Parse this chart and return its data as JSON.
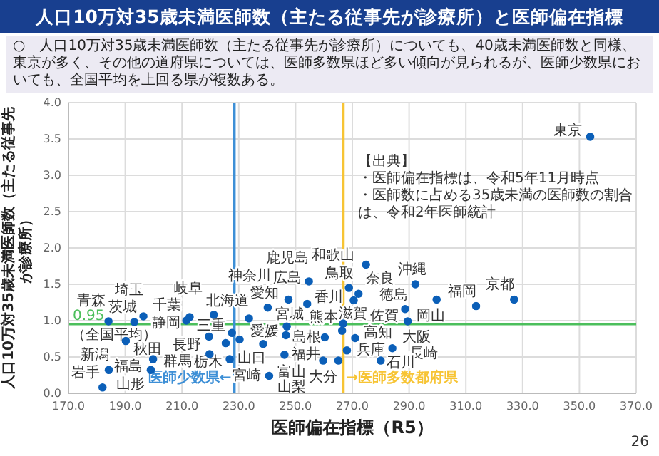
{
  "chart_data": {
    "type": "scatter",
    "title": "人口10万対35歳未満医師数（主たる従事先が診療所）と医師偏在指標",
    "subtitle": "○　人口10万対35歳未満医師数（主たる従事先が診療所）についても、40歳未満医師数と同様、東京が多く、その他の道府県については、医師多数県ほど多い傾向が見られるが、医師少数県においても、全国平均を上回る県が複数ある。",
    "xlabel": "医師偏在指標（R5）",
    "ylabel": "人口10万対35歳未満医師数（主たる従事先が診療所）",
    "x": [
      184.1,
      193.2,
      196.4,
      211.5,
      212.7,
      221.2,
      233.6,
      240.2,
      247.5,
      254.7,
      254.1,
      190.2,
      219.5,
      227.6,
      230.3,
      225.4,
      219.7,
      226.8,
      199.8,
      199.0,
      184.2,
      182.0,
      238.6,
      246.9,
      246.6,
      246.1,
      240.7,
      260.3,
      266.4,
      259.7,
      265.1,
      266.8,
      268.1,
      268.8,
      274.8,
      272.2,
      270.5,
      292.2,
      299.7,
      313.6,
      327.0,
      288.6,
      289.5,
      271.0,
      284.1,
      280.0,
      353.8
    ],
    "values": [
      0.99,
      0.98,
      1.06,
      1.0,
      1.05,
      1.08,
      1.03,
      1.18,
      1.29,
      1.54,
      1.23,
      0.72,
      0.78,
      0.83,
      0.74,
      0.69,
      0.54,
      0.47,
      0.47,
      0.32,
      0.32,
      0.08,
      0.68,
      0.92,
      0.8,
      0.53,
      0.24,
      0.77,
      0.86,
      0.45,
      0.45,
      0.96,
      0.59,
      1.45,
      1.77,
      1.37,
      1.28,
      1.5,
      1.29,
      1.2,
      1.29,
      1.16,
      0.99,
      0.76,
      0.62,
      0.45,
      3.53
    ],
    "color": "#0b5fb8",
    "marker": "circle",
    "grid": true,
    "xlim": [
      170,
      370
    ],
    "xticks": [
      {
        "value": 170,
        "label": "170.0"
      },
      {
        "value": 190,
        "label": "190.0"
      },
      {
        "value": 210,
        "label": "210.0"
      },
      {
        "value": 230,
        "label": "230.0"
      },
      {
        "value": 250,
        "label": "250.0"
      },
      {
        "value": 270,
        "label": "270.0"
      },
      {
        "value": 290,
        "label": "290.0"
      },
      {
        "value": 310,
        "label": "310.0"
      },
      {
        "value": 330,
        "label": "330.0"
      },
      {
        "value": 350,
        "label": "350.0"
      },
      {
        "value": 370,
        "label": "370.0"
      }
    ],
    "ylim": [
      0,
      4
    ],
    "yticks": [
      {
        "value": 0,
        "label": "0.0"
      },
      {
        "value": 0.5,
        "label": "0.5"
      },
      {
        "value": 1,
        "label": "1.0"
      },
      {
        "value": 1.5,
        "label": "1.5"
      },
      {
        "value": 2,
        "label": "2.0"
      },
      {
        "value": 2.5,
        "label": "2.5"
      },
      {
        "value": 3,
        "label": "3.0"
      },
      {
        "value": 3.5,
        "label": "3.5"
      },
      {
        "value": 4,
        "label": "4.0"
      }
    ],
    "ref_lines": [
      {
        "axis": "y",
        "value": 0.95,
        "label": "0.95",
        "color": "#4cbf5c"
      },
      {
        "axis": "x",
        "value": 228.4,
        "label": "医師少数県←",
        "color": "#3d8fd6"
      },
      {
        "axis": "x",
        "value": 266.8,
        "label": "→医師多数都府県",
        "color": "#f7c434"
      }
    ],
    "annotations": [
      {
        "text": "青森",
        "x": 184.1,
        "y": 0.99
      },
      {
        "text": "茨城",
        "x": 193.2,
        "y": 0.98
      },
      {
        "text": "埼玉",
        "x": 196.4,
        "y": 1.06
      },
      {
        "text": "静岡",
        "x": 211.5,
        "y": 1.0
      },
      {
        "text": "千葉",
        "x": 212.7,
        "y": 1.05
      },
      {
        "text": "岐阜",
        "x": 221.2,
        "y": 1.08
      },
      {
        "text": "北海道",
        "x": 233.6,
        "y": 1.03
      },
      {
        "text": "愛知",
        "x": 240.2,
        "y": 1.18
      },
      {
        "text": "神奈川",
        "x": 247.5,
        "y": 1.29
      },
      {
        "text": "鹿児島",
        "x": 254.7,
        "y": 1.54
      },
      {
        "text": "広島",
        "x": 254.1,
        "y": 1.23
      },
      {
        "text": "福島",
        "x": 190.2,
        "y": 0.72
      },
      {
        "text": "群馬",
        "x": 219.5,
        "y": 0.78
      },
      {
        "text": "山口",
        "x": 227.6,
        "y": 0.83
      },
      {
        "text": "栃木",
        "x": 230.3,
        "y": 0.74
      },
      {
        "text": "三重",
        "x": 225.4,
        "y": 0.69
      },
      {
        "text": "長野",
        "x": 219.7,
        "y": 0.54
      },
      {
        "text": "宮崎",
        "x": 226.8,
        "y": 0.47
      },
      {
        "text": "山形",
        "x": 199.8,
        "y": 0.47
      },
      {
        "text": "秋田",
        "x": 199.0,
        "y": 0.32
      },
      {
        "text": "新潟",
        "x": 184.2,
        "y": 0.32
      },
      {
        "text": "岩手",
        "x": 182.0,
        "y": 0.08
      },
      {
        "text": "富山",
        "x": 238.6,
        "y": 0.68
      },
      {
        "text": "宮城",
        "x": 246.9,
        "y": 0.92
      },
      {
        "text": "福井",
        "x": 246.6,
        "y": 0.8
      },
      {
        "text": "愛媛",
        "x": 246.1,
        "y": 0.53
      },
      {
        "text": "山梨",
        "x": 240.7,
        "y": 0.24
      },
      {
        "text": "滋賀",
        "x": 260.3,
        "y": 0.77
      },
      {
        "text": "兵庫",
        "x": 266.4,
        "y": 0.86
      },
      {
        "text": "大分",
        "x": 259.7,
        "y": 0.45
      },
      {
        "text": "島根",
        "x": 265.1,
        "y": 0.45
      },
      {
        "text": "香川",
        "x": 266.8,
        "y": 0.96
      },
      {
        "text": "高知",
        "x": 268.1,
        "y": 0.59
      },
      {
        "text": "奈良",
        "x": 268.8,
        "y": 1.45
      },
      {
        "text": "和歌山",
        "x": 274.8,
        "y": 1.77
      },
      {
        "text": "佐賀",
        "x": 272.2,
        "y": 1.37
      },
      {
        "text": "鳥取",
        "x": 270.5,
        "y": 1.28
      },
      {
        "text": "沖縄",
        "x": 292.2,
        "y": 1.5
      },
      {
        "text": "岡山",
        "x": 299.7,
        "y": 1.29
      },
      {
        "text": "福岡",
        "x": 313.6,
        "y": 1.2
      },
      {
        "text": "京都",
        "x": 327.0,
        "y": 1.29
      },
      {
        "text": "大阪",
        "x": 288.6,
        "y": 1.16
      },
      {
        "text": "徳島",
        "x": 289.5,
        "y": 0.99
      },
      {
        "text": "熊本",
        "x": 271.0,
        "y": 0.76
      },
      {
        "text": "長崎",
        "x": 284.1,
        "y": 0.62
      },
      {
        "text": "石川",
        "x": 280.0,
        "y": 0.45
      },
      {
        "text": "東京",
        "x": 353.8,
        "y": 3.53
      },
      {
        "text": "（全国平均）",
        "x": 178,
        "y": 0.95
      },
      "【出典】",
      "・医師偏在指標は、令和5年11月時点",
      "・医師数に占める35歳未満の医師数の割合は、令和2年医師統計",
      "26"
    ]
  }
}
